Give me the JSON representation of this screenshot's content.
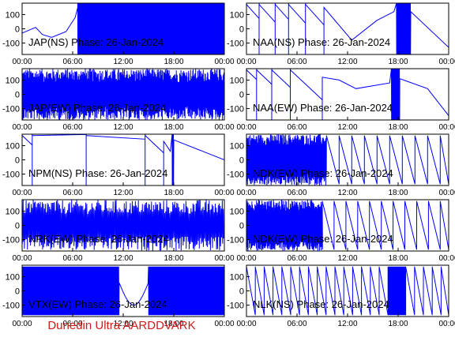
{
  "footer_text": "Dunedin Ultra AARDDVARK",
  "colors": {
    "trace": "#0000ff",
    "axes": "#000000",
    "footer": "#d11a1a",
    "background": "#ffffff"
  },
  "chart_data": [
    {
      "type": "line",
      "title": "JAP(NS) Phase: 26-Jan-2024",
      "station": "JAP(NS)",
      "x_ticks": [
        "00:00",
        "06:00",
        "12:00",
        "18:00",
        "00:00"
      ],
      "y_ticks": [
        "100",
        "0",
        "-100"
      ],
      "ylim": [
        -180,
        180
      ],
      "xlim_hours": [
        0,
        24
      ],
      "pattern": "segments",
      "segments": [
        [
          0,
          -30
        ],
        [
          1.6,
          10
        ],
        [
          2.4,
          -40
        ],
        [
          3.5,
          -60
        ],
        [
          5.2,
          -20
        ],
        [
          6.3,
          80
        ],
        [
          6.6,
          150
        ]
      ],
      "noise_from": 6.6,
      "noise_to": 24
    },
    {
      "type": "line",
      "title": "NAA(NS) Phase: 26-Jan-2024",
      "station": "NAA(NS)",
      "x_ticks": [
        "00:00",
        "06:00",
        "12:00",
        "18:00",
        "00:00"
      ],
      "y_ticks": [
        "100",
        "0",
        "-100"
      ],
      "ylim": [
        -180,
        180
      ],
      "xlim_hours": [
        0,
        24
      ],
      "pattern": "sawtooth",
      "wraps": [
        0,
        1.5,
        3.4,
        5.0,
        7.0,
        9.2
      ],
      "rate": -65,
      "then": [
        [
          9.2,
          150
        ],
        [
          12.5,
          -80
        ],
        [
          15.5,
          60
        ],
        [
          17.5,
          120
        ]
      ],
      "noise_from": 17.8,
      "noise_to": 19.5,
      "tail": [
        [
          19.5,
          120
        ],
        [
          24,
          -130
        ]
      ]
    },
    {
      "type": "line",
      "title": "JAP(EW) Phase: 26-Jan-2024",
      "station": "JAP(EW)",
      "x_ticks": [
        "00:00",
        "06:00",
        "12:00",
        "18:00",
        "00:00"
      ],
      "y_ticks": [
        "100",
        "0",
        "-100"
      ],
      "ylim": [
        -180,
        180
      ],
      "xlim_hours": [
        0,
        24
      ],
      "pattern": "noise_all",
      "noise_from": 0,
      "noise_to": 24
    },
    {
      "type": "line",
      "title": "NAA(EW) Phase: 26-Jan-2024",
      "station": "NAA(EW)",
      "x_ticks": [
        "00:00",
        "06:00",
        "12:00",
        "18:00",
        "00:00"
      ],
      "y_ticks": [
        "100",
        "0",
        "-100"
      ],
      "ylim": [
        -180,
        180
      ],
      "xlim_hours": [
        0,
        24
      ],
      "pattern": "sawtooth",
      "wraps": [
        0,
        1.2,
        3.0,
        5.2,
        9.0
      ],
      "rate": -55,
      "then": [
        [
          9.0,
          120
        ],
        [
          11.0,
          100
        ],
        [
          13.0,
          40
        ],
        [
          17.0,
          80
        ]
      ],
      "noise_from": 17.2,
      "noise_to": 18.2,
      "tail": [
        [
          18.2,
          110
        ],
        [
          21.5,
          40
        ],
        [
          24,
          -150
        ]
      ]
    },
    {
      "type": "line",
      "title": "NPM(NS) Phase: 26-Jan-2024",
      "station": "NPM(NS)",
      "x_ticks": [
        "00:00",
        "06:00",
        "12:00",
        "18:00",
        "00:00"
      ],
      "y_ticks": [
        "100",
        "0",
        "-100"
      ],
      "ylim": [
        -180,
        180
      ],
      "xlim_hours": [
        0,
        24
      ],
      "pattern": "sawtooth",
      "wraps": [
        0,
        1.2,
        7.6,
        14.6,
        16.8
      ],
      "rate": -55,
      "then": [
        [
          16.8,
          130
        ],
        [
          17.6,
          60
        ]
      ],
      "noise_from": 17.8,
      "noise_to": 18.0,
      "tail": [
        [
          18.0,
          140
        ],
        [
          24,
          0
        ]
      ]
    },
    {
      "type": "line",
      "title": "NDK(EW) Phase: 26-Jan-2024",
      "station": "NDK(EW)",
      "x_ticks": [
        "00:00",
        "06:00",
        "12:00",
        "18:00",
        "00:00"
      ],
      "y_ticks": [
        "100",
        "0",
        "-100"
      ],
      "ylim": [
        -180,
        180
      ],
      "xlim_hours": [
        0,
        24
      ],
      "pattern": "noise_then_saw",
      "noise_from": 0,
      "noise_to": 9.5,
      "saw_period": 1.5,
      "saw_from": 9.5
    },
    {
      "type": "line",
      "title": "NRK(EW) Phase: 26-Jan-2024",
      "station": "NRK(EW)",
      "x_ticks": [
        "00:00",
        "06:00",
        "12:00",
        "18:00",
        "00:00"
      ],
      "y_ticks": [
        "100",
        "0",
        "-100"
      ],
      "ylim": [
        -180,
        180
      ],
      "xlim_hours": [
        0,
        24
      ],
      "pattern": "noise_all",
      "noise_from": 0,
      "noise_to": 24,
      "density": 0.35
    },
    {
      "type": "line",
      "title": "NDK(EW) Phase: 26-Jan-2024",
      "station": "NDK(EW)",
      "x_ticks": [
        "00:00",
        "06:00",
        "12:00",
        "18:00",
        "00:00"
      ],
      "y_ticks": [
        "100",
        "0",
        "-100"
      ],
      "ylim": [
        -180,
        180
      ],
      "xlim_hours": [
        0,
        24
      ],
      "pattern": "noise_then_saw",
      "noise_from": 0,
      "noise_to": 9.0,
      "saw_period": 1.4,
      "saw_from": 9.0
    },
    {
      "type": "line",
      "title": "VTX(EW) Phase: 26-Jan-2024",
      "station": "VTX(EW)",
      "x_ticks": [
        "00:00",
        "06:00",
        "12:00",
        "18:00",
        "00:00"
      ],
      "y_ticks": [
        "100",
        "0",
        "-100"
      ],
      "ylim": [
        -180,
        180
      ],
      "xlim_hours": [
        0,
        24
      ],
      "pattern": "noise_dip",
      "noise_from": 0,
      "noise_to": 24,
      "dip_from": 11.5,
      "dip_to": 15.0
    },
    {
      "type": "line",
      "title": "NLK(NS) Phase: 26-Jan-2024",
      "station": "NLK(NS)",
      "x_ticks": [
        "00:00",
        "06:00",
        "12:00",
        "18:00",
        "00:00"
      ],
      "y_ticks": [
        "100",
        "0",
        "-100"
      ],
      "ylim": [
        -180,
        180
      ],
      "xlim_hours": [
        0,
        24
      ],
      "pattern": "sawtooth_regular",
      "saw_period": 1.05,
      "noise_from": 16.0,
      "noise_to": 18.0
    }
  ]
}
